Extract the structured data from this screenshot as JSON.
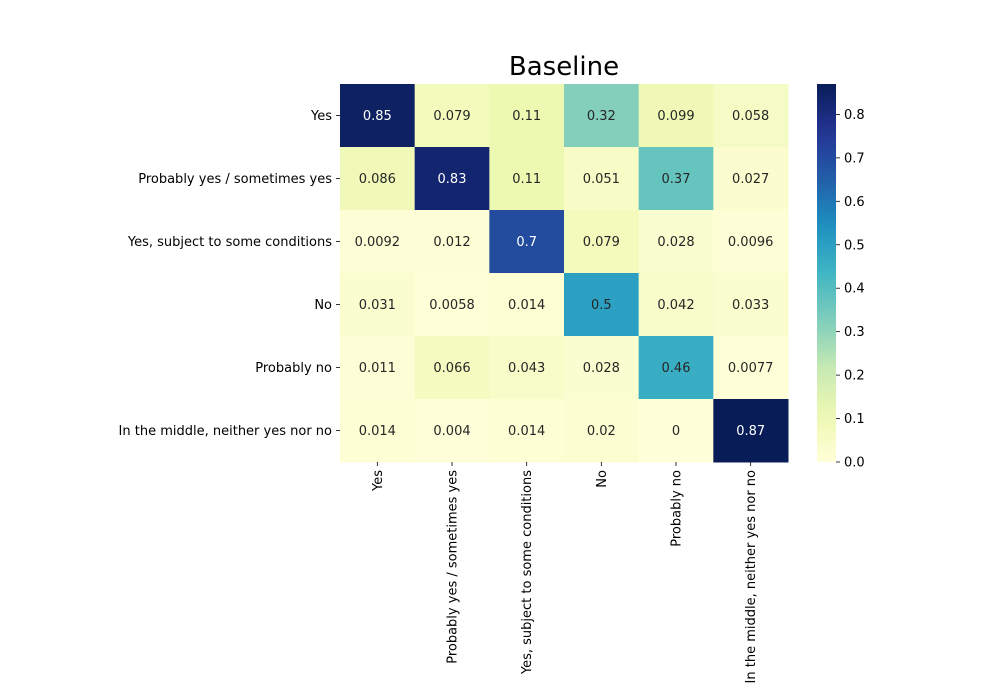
{
  "chart_data": {
    "type": "heatmap",
    "title": "Baseline",
    "xlabel": "",
    "ylabel": "",
    "row_labels": [
      "Yes",
      "Probably yes / sometimes yes",
      "Yes, subject to some conditions",
      "No",
      "Probably no",
      "In the middle, neither yes nor no"
    ],
    "col_labels": [
      "Yes",
      "Probably yes / sometimes yes",
      "Yes, subject to some conditions",
      "No",
      "Probably no",
      "In the middle, neither yes nor no"
    ],
    "values": [
      [
        0.85,
        0.079,
        0.11,
        0.32,
        0.099,
        0.058
      ],
      [
        0.086,
        0.83,
        0.11,
        0.051,
        0.37,
        0.027
      ],
      [
        0.0092,
        0.012,
        0.7,
        0.079,
        0.028,
        0.0096
      ],
      [
        0.031,
        0.0058,
        0.014,
        0.5,
        0.042,
        0.033
      ],
      [
        0.011,
        0.066,
        0.043,
        0.028,
        0.46,
        0.0077
      ],
      [
        0.014,
        0.004,
        0.014,
        0.02,
        0,
        0.87
      ]
    ],
    "value_labels": [
      [
        "0.85",
        "0.079",
        "0.11",
        "0.32",
        "0.099",
        "0.058"
      ],
      [
        "0.086",
        "0.83",
        "0.11",
        "0.051",
        "0.37",
        "0.027"
      ],
      [
        "0.0092",
        "0.012",
        "0.7",
        "0.079",
        "0.028",
        "0.0096"
      ],
      [
        "0.031",
        "0.0058",
        "0.014",
        "0.5",
        "0.042",
        "0.033"
      ],
      [
        "0.011",
        "0.066",
        "0.043",
        "0.028",
        "0.46",
        "0.0077"
      ],
      [
        "0.014",
        "0.004",
        "0.014",
        "0.02",
        "0",
        "0.87"
      ]
    ],
    "colormap": "YlGnBu",
    "colorbar": {
      "vmin": 0,
      "vmax": 0.87,
      "ticks": [
        0.0,
        0.1,
        0.2,
        0.3,
        0.4,
        0.5,
        0.6,
        0.7,
        0.8
      ],
      "tick_labels": [
        "0.0",
        "0.1",
        "0.2",
        "0.3",
        "0.4",
        "0.5",
        "0.6",
        "0.7",
        "0.8"
      ]
    },
    "grid": false,
    "legend": "colorbar-right"
  }
}
